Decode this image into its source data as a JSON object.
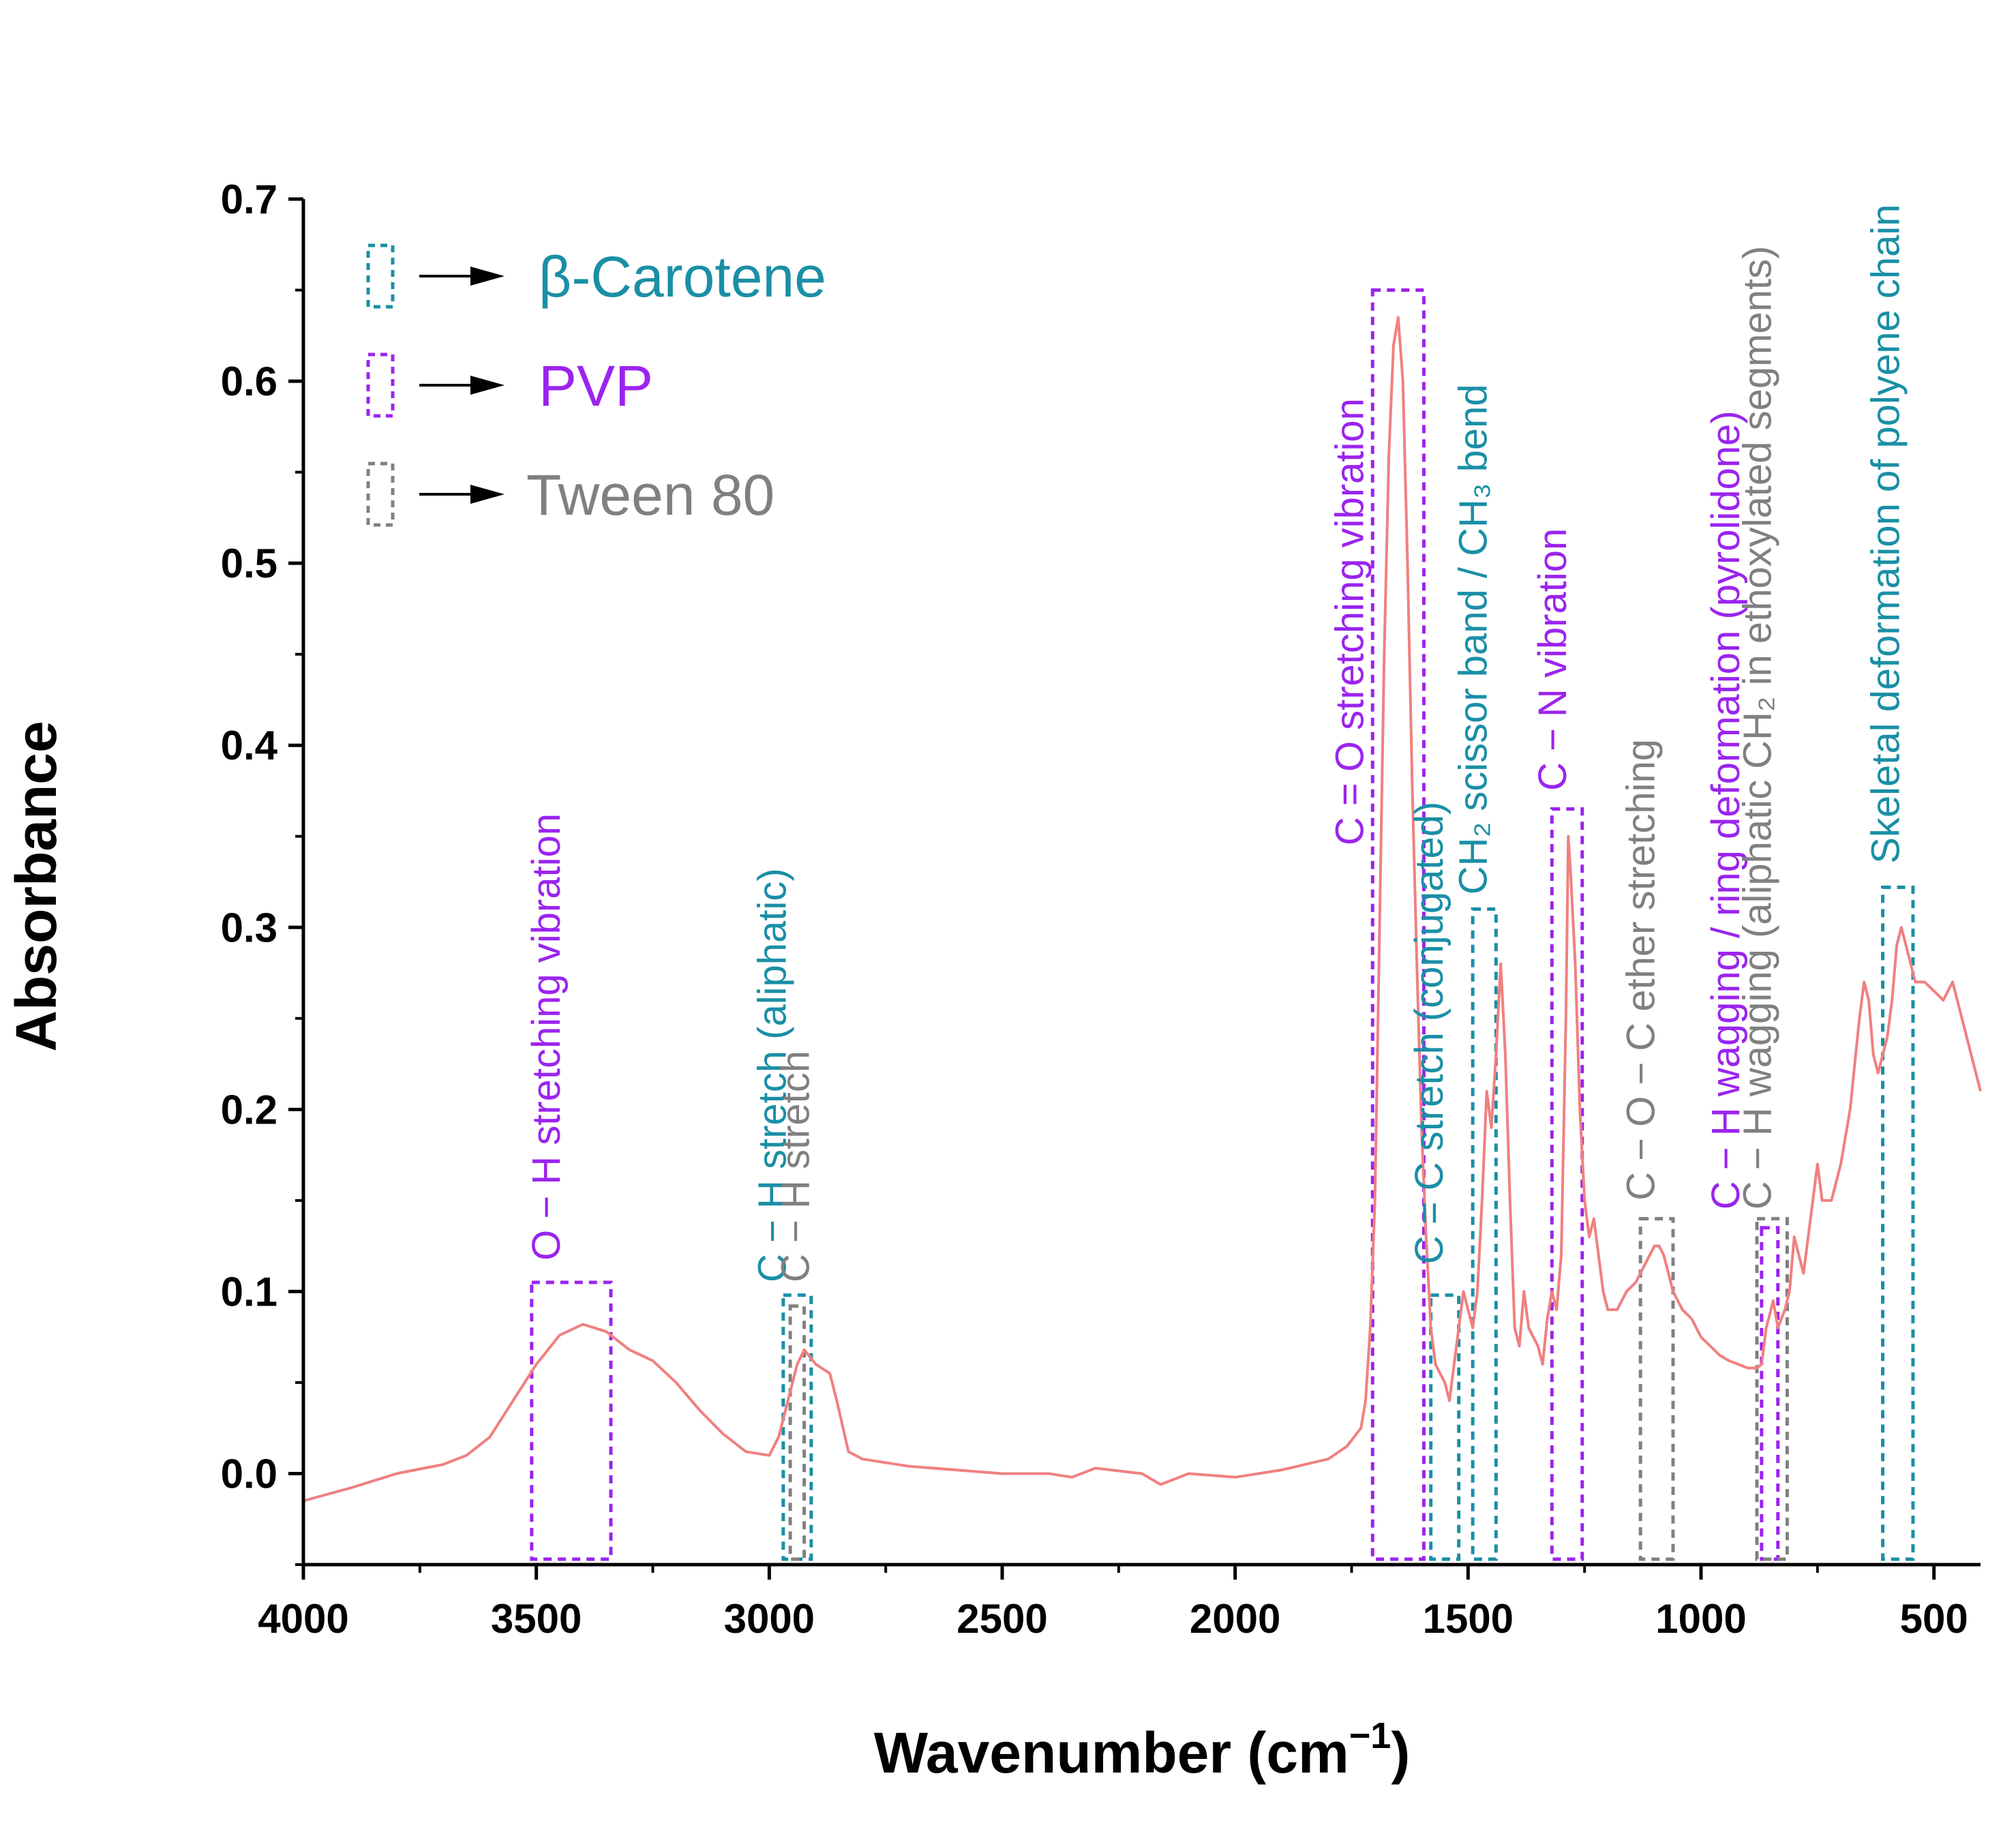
{
  "colors": {
    "carotene": "#1a8fa6",
    "pvp": "#9b24ee",
    "tween": "#808080",
    "spectrum": "#f08080"
  },
  "chart_data": {
    "type": "line",
    "xlabel": "Wavenumber (cm",
    "xlabel_sup": "−1",
    "xlabel_close": ")",
    "ylabel": "Absorbance",
    "xlim": [
      4000,
      400
    ],
    "ylim": [
      -0.05,
      0.7
    ],
    "x_reversed": true,
    "grid": false,
    "xticks": [
      4000,
      3500,
      3000,
      2500,
      2000,
      1500,
      1000,
      500
    ],
    "yticks": [
      0.0,
      0.1,
      0.2,
      0.3,
      0.4,
      0.5,
      0.6,
      0.7
    ],
    "yticklabels": [
      "0.0",
      "0.1",
      "0.2",
      "0.3",
      "0.4",
      "0.5",
      "0.6",
      "0.7"
    ],
    "series": [
      {
        "color": "#f08080",
        "points": [
          [
            4000,
            -0.015
          ],
          [
            3900,
            -0.008
          ],
          [
            3800,
            0.0
          ],
          [
            3700,
            0.005
          ],
          [
            3650,
            0.01
          ],
          [
            3600,
            0.02
          ],
          [
            3550,
            0.04
          ],
          [
            3500,
            0.06
          ],
          [
            3450,
            0.076
          ],
          [
            3400,
            0.082
          ],
          [
            3350,
            0.078
          ],
          [
            3300,
            0.068
          ],
          [
            3250,
            0.062
          ],
          [
            3200,
            0.05
          ],
          [
            3150,
            0.035
          ],
          [
            3100,
            0.022
          ],
          [
            3050,
            0.012
          ],
          [
            3000,
            0.01
          ],
          [
            2980,
            0.02
          ],
          [
            2960,
            0.04
          ],
          [
            2940,
            0.06
          ],
          [
            2925,
            0.068
          ],
          [
            2900,
            0.06
          ],
          [
            2870,
            0.055
          ],
          [
            2855,
            0.04
          ],
          [
            2830,
            0.012
          ],
          [
            2800,
            0.008
          ],
          [
            2700,
            0.004
          ],
          [
            2600,
            0.002
          ],
          [
            2500,
            0.0
          ],
          [
            2400,
            0.0
          ],
          [
            2350,
            -0.002
          ],
          [
            2300,
            0.003
          ],
          [
            2200,
            0.0
          ],
          [
            2160,
            -0.006
          ],
          [
            2100,
            0.0
          ],
          [
            2000,
            -0.002
          ],
          [
            1950,
            0.0
          ],
          [
            1900,
            0.002
          ],
          [
            1850,
            0.005
          ],
          [
            1800,
            0.008
          ],
          [
            1760,
            0.015
          ],
          [
            1730,
            0.025
          ],
          [
            1720,
            0.04
          ],
          [
            1710,
            0.08
          ],
          [
            1700,
            0.15
          ],
          [
            1690,
            0.3
          ],
          [
            1680,
            0.45
          ],
          [
            1670,
            0.56
          ],
          [
            1660,
            0.62
          ],
          [
            1650,
            0.635
          ],
          [
            1640,
            0.6
          ],
          [
            1630,
            0.5
          ],
          [
            1620,
            0.38
          ],
          [
            1610,
            0.28
          ],
          [
            1600,
            0.19
          ],
          [
            1590,
            0.13
          ],
          [
            1580,
            0.08
          ],
          [
            1570,
            0.06
          ],
          [
            1560,
            0.055
          ],
          [
            1550,
            0.05
          ],
          [
            1540,
            0.04
          ],
          [
            1530,
            0.06
          ],
          [
            1520,
            0.08
          ],
          [
            1510,
            0.1
          ],
          [
            1500,
            0.09
          ],
          [
            1490,
            0.08
          ],
          [
            1480,
            0.1
          ],
          [
            1470,
            0.15
          ],
          [
            1460,
            0.21
          ],
          [
            1450,
            0.19
          ],
          [
            1440,
            0.23
          ],
          [
            1430,
            0.28
          ],
          [
            1420,
            0.23
          ],
          [
            1410,
            0.15
          ],
          [
            1400,
            0.08
          ],
          [
            1390,
            0.07
          ],
          [
            1380,
            0.1
          ],
          [
            1370,
            0.08
          ],
          [
            1350,
            0.07
          ],
          [
            1340,
            0.06
          ],
          [
            1330,
            0.085
          ],
          [
            1320,
            0.1
          ],
          [
            1310,
            0.09
          ],
          [
            1300,
            0.12
          ],
          [
            1290,
            0.25
          ],
          [
            1285,
            0.35
          ],
          [
            1280,
            0.33
          ],
          [
            1270,
            0.28
          ],
          [
            1260,
            0.2
          ],
          [
            1250,
            0.15
          ],
          [
            1240,
            0.13
          ],
          [
            1230,
            0.14
          ],
          [
            1220,
            0.12
          ],
          [
            1210,
            0.1
          ],
          [
            1200,
            0.09
          ],
          [
            1180,
            0.09
          ],
          [
            1160,
            0.1
          ],
          [
            1140,
            0.105
          ],
          [
            1120,
            0.115
          ],
          [
            1100,
            0.125
          ],
          [
            1090,
            0.125
          ],
          [
            1080,
            0.12
          ],
          [
            1070,
            0.11
          ],
          [
            1060,
            0.1
          ],
          [
            1040,
            0.09
          ],
          [
            1020,
            0.085
          ],
          [
            1000,
            0.075
          ],
          [
            980,
            0.07
          ],
          [
            960,
            0.065
          ],
          [
            940,
            0.062
          ],
          [
            920,
            0.06
          ],
          [
            900,
            0.058
          ],
          [
            880,
            0.058
          ],
          [
            870,
            0.06
          ],
          [
            860,
            0.08
          ],
          [
            850,
            0.09
          ],
          [
            845,
            0.095
          ],
          [
            835,
            0.08
          ],
          [
            820,
            0.09
          ],
          [
            810,
            0.1
          ],
          [
            800,
            0.13
          ],
          [
            790,
            0.12
          ],
          [
            780,
            0.11
          ],
          [
            770,
            0.13
          ],
          [
            760,
            0.15
          ],
          [
            750,
            0.17
          ],
          [
            740,
            0.15
          ],
          [
            720,
            0.15
          ],
          [
            700,
            0.17
          ],
          [
            680,
            0.2
          ],
          [
            660,
            0.25
          ],
          [
            650,
            0.27
          ],
          [
            640,
            0.26
          ],
          [
            630,
            0.23
          ],
          [
            620,
            0.22
          ],
          [
            610,
            0.23
          ],
          [
            600,
            0.24
          ],
          [
            590,
            0.26
          ],
          [
            580,
            0.29
          ],
          [
            570,
            0.3
          ],
          [
            560,
            0.29
          ],
          [
            540,
            0.27
          ],
          [
            520,
            0.27
          ],
          [
            500,
            0.265
          ],
          [
            480,
            0.26
          ],
          [
            460,
            0.27
          ],
          [
            440,
            0.25
          ],
          [
            420,
            0.23
          ],
          [
            400,
            0.21
          ]
        ]
      }
    ],
    "legend": {
      "placement": "top-left",
      "entries": [
        {
          "label": "β-Carotene",
          "color": "#1a8fa6"
        },
        {
          "label": "PVP",
          "color": "#9b24ee"
        },
        {
          "label": "Tween 80",
          "color": "#808080"
        }
      ]
    },
    "annotations": [
      {
        "group": "pvp",
        "x_range": [
          3510,
          3340
        ],
        "y_top": 0.105,
        "label": "O − H stretching vibration",
        "label_x": 3450,
        "label_y": 0.117
      },
      {
        "group": "carotene",
        "x_range": [
          2970,
          2910
        ],
        "y_top": 0.098,
        "label": "C − H stretch (aliphatic)",
        "label_x": 2965,
        "label_y": 0.105
      },
      {
        "group": "tween",
        "x_range": [
          2955,
          2925
        ],
        "y_top": 0.092,
        "label": "C − H stretch",
        "label_x": 2915,
        "label_y": 0.105
      },
      {
        "group": "pvp",
        "x_range": [
          1705,
          1595
        ],
        "y_top": 0.65,
        "label": "C = O stretching vibration",
        "label_x": 1725,
        "label_y": 0.345
      },
      {
        "group": "carotene",
        "x_range": [
          1580,
          1520
        ],
        "y_top": 0.098,
        "label": "C = C stretch (conjugated)",
        "label_x": 1555,
        "label_y": 0.115
      },
      {
        "group": "carotene",
        "x_range": [
          1490,
          1440
        ],
        "y_top": 0.31,
        "label": "CH₂ scissor band / CH₃ bend",
        "label_x": 1460,
        "label_y": 0.318
      },
      {
        "group": "pvp",
        "x_range": [
          1320,
          1255
        ],
        "y_top": 0.365,
        "label": "C − N vibration",
        "label_x": 1290,
        "label_y": 0.375
      },
      {
        "group": "tween",
        "x_range": [
          1130,
          1060
        ],
        "y_top": 0.14,
        "label": "C − O − C ether stretching",
        "label_x": 1100,
        "label_y": 0.15
      },
      {
        "group": "pvp",
        "x_range": [
          870,
          835
        ],
        "y_top": 0.135,
        "label": "C − H wagging / ring deformation (pyrolidone)",
        "label_x": 918,
        "label_y": 0.145
      },
      {
        "group": "tween",
        "x_range": [
          880,
          815
        ],
        "y_top": 0.14,
        "label": "C − H wagging (aliphatic CH₂ in ethoxylated segments)",
        "label_x": 850,
        "label_y": 0.145
      },
      {
        "group": "carotene",
        "x_range": [
          610,
          545
        ],
        "y_top": 0.322,
        "label": "Skeletal deformation of polyene chain",
        "label_x": 575,
        "label_y": 0.335
      }
    ]
  }
}
